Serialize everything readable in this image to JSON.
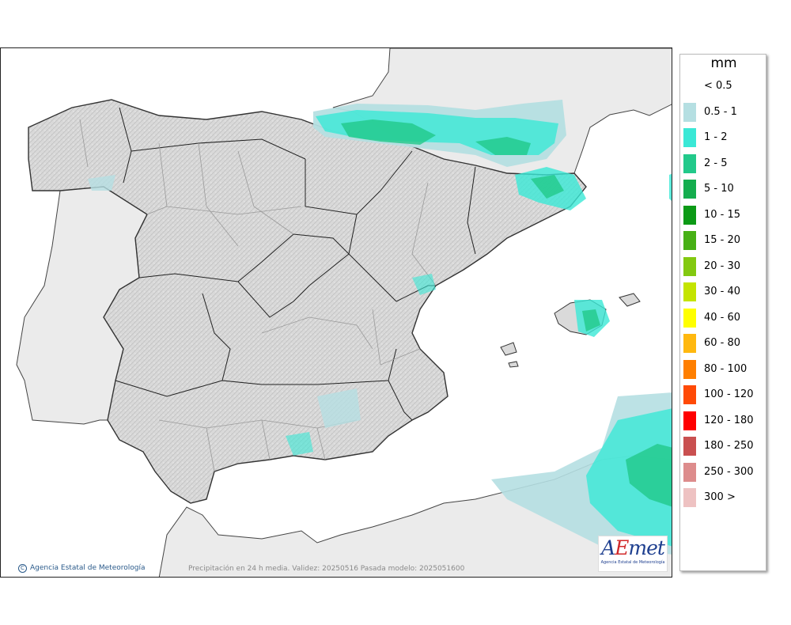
{
  "legend": {
    "unit": "mm",
    "items": [
      {
        "label": "< 0.5",
        "color": "#ffffff"
      },
      {
        "label": "0.5 - 1",
        "color": "#b5dfe2"
      },
      {
        "label": "1 - 2",
        "color": "#3ae8d6"
      },
      {
        "label": "2 - 5",
        "color": "#22c98a"
      },
      {
        "label": "5 - 10",
        "color": "#14ad4e"
      },
      {
        "label": "10 - 15",
        "color": "#0c9a16"
      },
      {
        "label": "15 - 20",
        "color": "#47b015"
      },
      {
        "label": "20 - 30",
        "color": "#83c910"
      },
      {
        "label": "30 - 40",
        "color": "#c4e400"
      },
      {
        "label": "40 - 60",
        "color": "#ffff00"
      },
      {
        "label": "60 - 80",
        "color": "#ffb80f"
      },
      {
        "label": "80 - 100",
        "color": "#ff7f00"
      },
      {
        "label": "100 - 120",
        "color": "#ff4a06"
      },
      {
        "label": "120 - 180",
        "color": "#ff0000"
      },
      {
        "label": "180 - 250",
        "color": "#c95050"
      },
      {
        "label": "250 - 300",
        "color": "#dd8c8c"
      },
      {
        "label": "300 >",
        "color": "#eec2c2"
      }
    ]
  },
  "footer": {
    "credit": "Agencia Estatal de Meteorología",
    "validity": "Precipitación en 24 h media. Validez: 20250516 Pasada modelo: 2025051600"
  },
  "logo": {
    "subtitle": "Agencia Estatal de Meteorología"
  },
  "colors": {
    "sea": "#ffffff",
    "land_foreign": "#ebebeb",
    "land_spain": "#dadada",
    "border": "#333333"
  }
}
